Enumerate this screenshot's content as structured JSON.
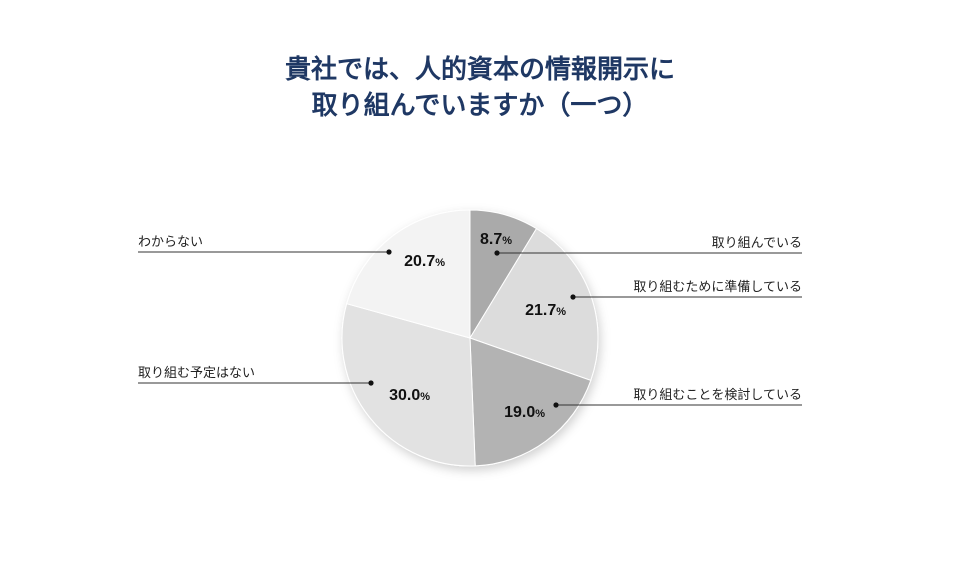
{
  "title": {
    "line1": "貴社では、人的資本の情報開示に",
    "line2": "取り組んでいますか（一つ）"
  },
  "chart_data": {
    "type": "pie",
    "title": "貴社では、人的資本の情報開示に取り組んでいますか（一つ）",
    "start": "12 o'clock",
    "direction": "clockwise",
    "legend": "none (leader-line labels)",
    "slices": [
      {
        "label": "取り組んでいる",
        "value": 8.7,
        "display": "8.7%",
        "color": "#aaaaaa",
        "side": "right"
      },
      {
        "label": "取り組むために準備している",
        "value": 21.7,
        "display": "21.7%",
        "color": "#dcdcdc",
        "side": "right"
      },
      {
        "label": "取り組むことを検討している",
        "value": 19.0,
        "display": "19.0%",
        "color": "#b3b3b3",
        "side": "right"
      },
      {
        "label": "取り組む予定はない",
        "value": 30.0,
        "display": "30.0%",
        "color": "#e2e2e2",
        "side": "left"
      },
      {
        "label": "わからない",
        "value": 20.7,
        "display": "20.7%",
        "color": "#f3f3f3",
        "side": "left"
      }
    ]
  }
}
